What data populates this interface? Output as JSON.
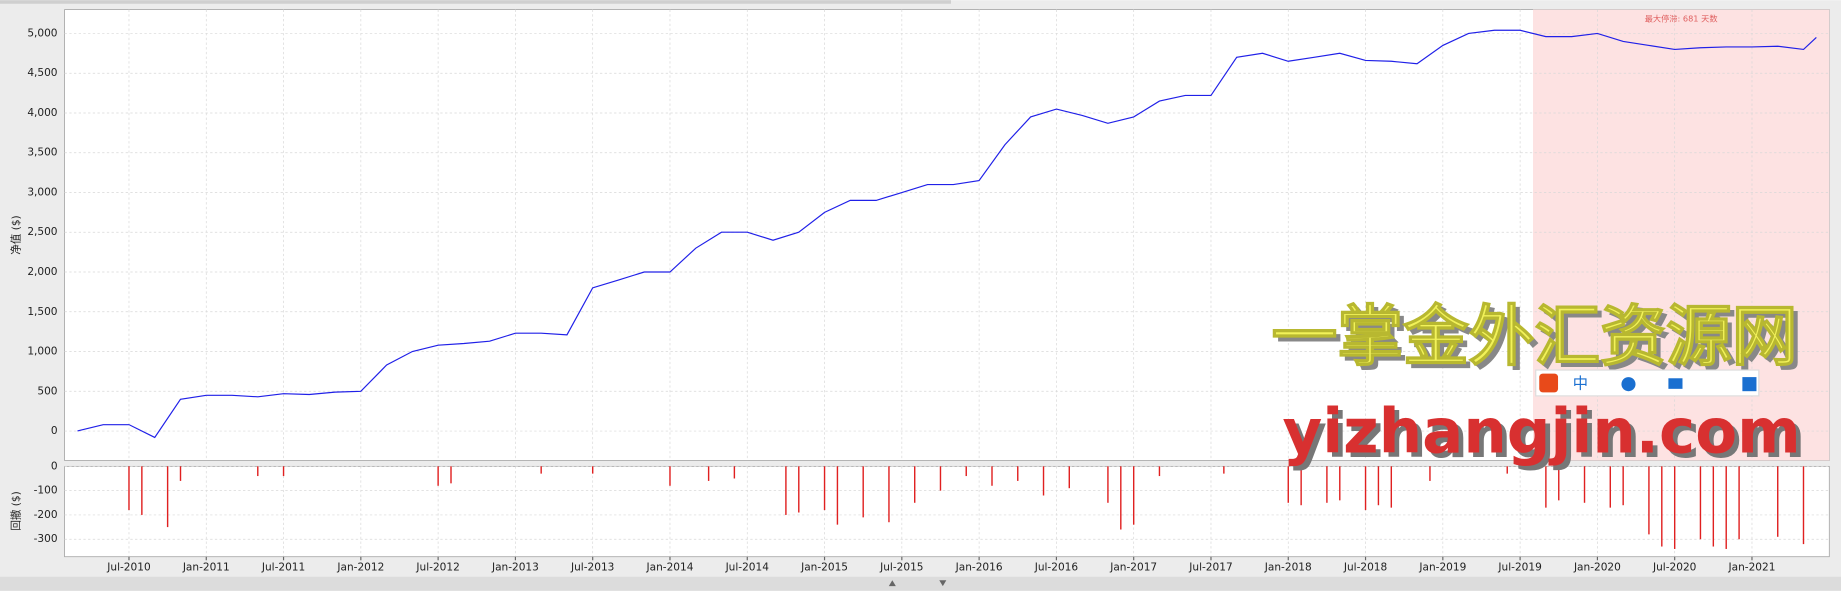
{
  "chart_data": [
    {
      "type": "line",
      "y_label": "净值 ($)",
      "x": [
        "2010-03",
        "2010-05",
        "2010-07",
        "2010-09",
        "2010-11",
        "2011-01",
        "2011-03",
        "2011-05",
        "2011-07",
        "2011-09",
        "2011-11",
        "2012-01",
        "2012-03",
        "2012-05",
        "2012-07",
        "2012-09",
        "2012-11",
        "2013-01",
        "2013-03",
        "2013-05",
        "2013-07",
        "2013-09",
        "2013-11",
        "2014-01",
        "2014-03",
        "2014-05",
        "2014-07",
        "2014-09",
        "2014-11",
        "2015-01",
        "2015-03",
        "2015-05",
        "2015-07",
        "2015-09",
        "2015-11",
        "2016-01",
        "2016-03",
        "2016-05",
        "2016-07",
        "2016-09",
        "2016-11",
        "2017-01",
        "2017-03",
        "2017-05",
        "2017-07",
        "2017-09",
        "2017-11",
        "2018-01",
        "2018-03",
        "2018-05",
        "2018-07",
        "2018-09",
        "2018-11",
        "2019-01",
        "2019-03",
        "2019-05",
        "2019-07",
        "2019-09",
        "2019-11",
        "2020-01",
        "2020-03",
        "2020-05",
        "2020-07",
        "2020-09",
        "2020-11",
        "2021-01",
        "2021-03",
        "2021-05",
        "2021-06"
      ],
      "values": [
        0,
        80,
        80,
        -80,
        400,
        450,
        450,
        430,
        470,
        460,
        490,
        500,
        830,
        1000,
        1080,
        1100,
        1130,
        1230,
        1230,
        1210,
        1800,
        1900,
        2000,
        2000,
        2300,
        2500,
        2500,
        2400,
        2500,
        2750,
        2900,
        2900,
        3000,
        3100,
        3100,
        3150,
        3600,
        3950,
        4050,
        3970,
        3870,
        3950,
        4150,
        4220,
        4220,
        4700,
        4750,
        4650,
        4700,
        4750,
        4660,
        4650,
        4620,
        4850,
        5000,
        5040,
        5040,
        4960,
        4960,
        5000,
        4900,
        4850,
        4800,
        4820,
        4830,
        4830,
        4840,
        4800,
        4950
      ],
      "color": "#2020e8",
      "xlim": [
        "2010-02",
        "2021-07"
      ],
      "ylim": [
        -370,
        5300
      ],
      "yticks": [
        0,
        {
          "value": 500,
          "label": "500"
        },
        {
          "value": 1000,
          "label": "1,000"
        },
        {
          "value": 1500,
          "label": "1,500"
        },
        {
          "value": 2000,
          "label": "2,000"
        },
        {
          "value": 2500,
          "label": "2,500"
        },
        {
          "value": 3000,
          "label": "3,000"
        },
        {
          "value": 3500,
          "label": "3,500"
        },
        {
          "value": 4000,
          "label": "4,000"
        },
        {
          "value": 4500,
          "label": "4,500"
        },
        {
          "value": 5000,
          "label": "5,000"
        }
      ],
      "grid": true,
      "stagnation": {
        "label": "最大停滞: 681 天数",
        "start": "2019-08"
      }
    },
    {
      "type": "bar",
      "y_label": "回撤 ($)",
      "x": [
        "2010-07",
        "2010-08",
        "2010-10",
        "2010-11",
        "2011-05",
        "2011-07",
        "2012-07",
        "2012-08",
        "2013-03",
        "2013-07",
        "2014-01",
        "2014-04",
        "2014-06",
        "2014-10",
        "2014-11",
        "2015-01",
        "2015-02",
        "2015-04",
        "2015-06",
        "2015-08",
        "2015-10",
        "2015-12",
        "2016-02",
        "2016-04",
        "2016-06",
        "2016-08",
        "2016-11",
        "2016-12",
        "2017-01",
        "2017-03",
        "2017-08",
        "2018-01",
        "2018-02",
        "2018-04",
        "2018-05",
        "2018-07",
        "2018-08",
        "2018-09",
        "2018-12",
        "2019-06",
        "2019-09",
        "2019-10",
        "2019-12",
        "2020-02",
        "2020-03",
        "2020-05",
        "2020-06",
        "2020-07",
        "2020-09",
        "2020-10",
        "2020-11",
        "2020-12",
        "2021-03",
        "2021-05"
      ],
      "values": [
        -180,
        -200,
        -250,
        -60,
        -40,
        -40,
        -80,
        -70,
        -30,
        -30,
        -80,
        -60,
        -50,
        -200,
        -190,
        -180,
        -240,
        -210,
        -230,
        -150,
        -100,
        -40,
        -80,
        -60,
        -120,
        -90,
        -150,
        -260,
        -240,
        -40,
        -30,
        -150,
        -160,
        -150,
        -140,
        -180,
        -160,
        -170,
        -60,
        -30,
        -170,
        -140,
        -150,
        -170,
        -160,
        -280,
        -330,
        -340,
        -300,
        -330,
        -340,
        -300,
        -290,
        -320
      ],
      "color": "#e02020",
      "xlim": [
        "2010-02",
        "2021-07"
      ],
      "ylim": [
        -372,
        0
      ],
      "yticks": [
        0,
        -100,
        -200,
        -300
      ],
      "xticks": [
        {
          "value": "2010-07",
          "label": "Jul-2010"
        },
        {
          "value": "2011-01",
          "label": "Jan-2011"
        },
        {
          "value": "2011-07",
          "label": "Jul-2011"
        },
        {
          "value": "2012-01",
          "label": "Jan-2012"
        },
        {
          "value": "2012-07",
          "label": "Jul-2012"
        },
        {
          "value": "2013-01",
          "label": "Jan-2013"
        },
        {
          "value": "2013-07",
          "label": "Jul-2013"
        },
        {
          "value": "2014-01",
          "label": "Jan-2014"
        },
        {
          "value": "2014-07",
          "label": "Jul-2014"
        },
        {
          "value": "2015-01",
          "label": "Jan-2015"
        },
        {
          "value": "2015-07",
          "label": "Jul-2015"
        },
        {
          "value": "2016-01",
          "label": "Jan-2016"
        },
        {
          "value": "2016-07",
          "label": "Jul-2016"
        },
        {
          "value": "2017-01",
          "label": "Jan-2017"
        },
        {
          "value": "2017-07",
          "label": "Jul-2017"
        },
        {
          "value": "2018-01",
          "label": "Jan-2018"
        },
        {
          "value": "2018-07",
          "label": "Jul-2018"
        },
        {
          "value": "2019-01",
          "label": "Jan-2019"
        },
        {
          "value": "2019-07",
          "label": "Jul-2019"
        },
        {
          "value": "2020-01",
          "label": "Jan-2020"
        },
        {
          "value": "2020-07",
          "label": "Jul-2020"
        },
        {
          "value": "2021-01",
          "label": "Jan-2021"
        }
      ],
      "grid": true
    }
  ],
  "watermark": {
    "title": "一掌金外汇资源网",
    "url": "yizhangjin.com",
    "ime": "中"
  }
}
